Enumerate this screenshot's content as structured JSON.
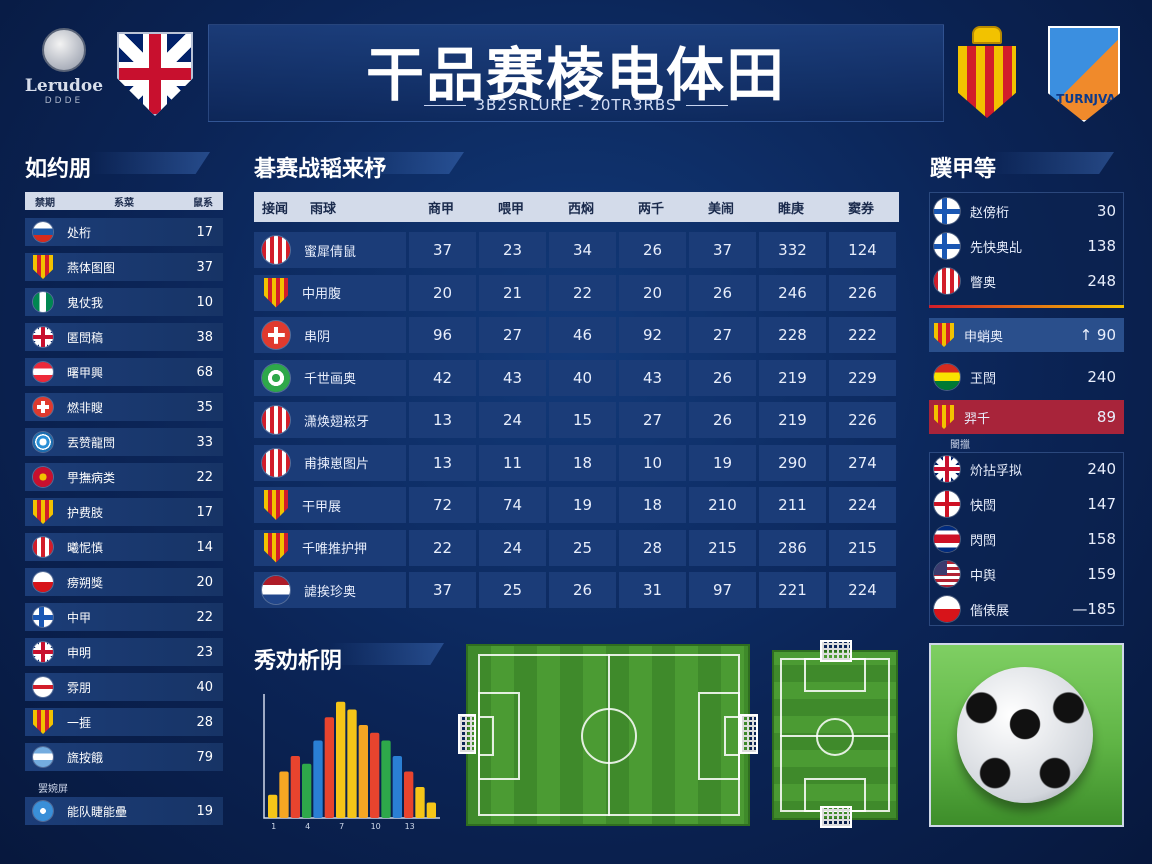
{
  "header": {
    "title": "干品赛棱电体田",
    "subtitle": "3B2SRLURE - 20TR3RBS",
    "left_logo_text": "Lerudoe",
    "left_logo_sub": "DDDE",
    "right_logo_text": "TURNJVA"
  },
  "left_panel": {
    "title": "如约朋",
    "columns": [
      "禁期",
      "系菜",
      "鼠系"
    ],
    "rows": [
      {
        "flag": "russia",
        "name": "处桁",
        "value": "17"
      },
      {
        "flag": "spain-crest",
        "name": "燕体图图",
        "value": "37"
      },
      {
        "flag": "nigeria",
        "name": "鬼仗我",
        "value": "10"
      },
      {
        "flag": "uk",
        "name": "匿閚稿",
        "value": "38"
      },
      {
        "flag": "austria",
        "name": "曙甲興",
        "value": "68"
      },
      {
        "flag": "red-cross",
        "name": "燃非瞍",
        "value": "35"
      },
      {
        "flag": "blue-crest",
        "name": "丟赞龍閚",
        "value": "33"
      },
      {
        "flag": "red-crest",
        "name": "甼撫病类",
        "value": "22"
      },
      {
        "flag": "spain-crest",
        "name": "护费肢",
        "value": "17"
      },
      {
        "flag": "red-white",
        "name": "曦怩慎",
        "value": "14"
      },
      {
        "flag": "czech",
        "name": "痨朔獎",
        "value": "20"
      },
      {
        "flag": "finland",
        "name": "中甲",
        "value": "22"
      },
      {
        "flag": "uk",
        "name": "申明",
        "value": "23"
      },
      {
        "flag": "red-white-2",
        "name": "雰朋",
        "value": "40"
      },
      {
        "flag": "spain-crest",
        "name": "一捱",
        "value": "28"
      },
      {
        "flag": "argentina",
        "name": "旒按餓",
        "value": "79"
      }
    ],
    "footer_label": "罢婉屏",
    "footer_row": {
      "flag": "blue-crest",
      "name": "能队睫能壘",
      "value": "19"
    }
  },
  "main_table": {
    "title": "碁赛战韬来杼",
    "columns": [
      "接闻",
      "雨球",
      "商甲",
      "喂甲",
      "西焖",
      "两千",
      "美闹",
      "睢庚",
      "窦券"
    ],
    "rows": [
      {
        "flag": "red-white",
        "name": "蜜犀倩鼠",
        "values": [
          "37",
          "23",
          "34",
          "26",
          "37",
          "332",
          "124"
        ]
      },
      {
        "flag": "spain-crest",
        "name": "中用腹",
        "values": [
          "20",
          "21",
          "22",
          "20",
          "26",
          "246",
          "226"
        ]
      },
      {
        "flag": "red-cross",
        "name": "串阴",
        "values": [
          "96",
          "27",
          "46",
          "92",
          "27",
          "228",
          "222"
        ]
      },
      {
        "flag": "green-white",
        "name": "千世画奥",
        "values": [
          "42",
          "43",
          "40",
          "43",
          "26",
          "219",
          "229"
        ]
      },
      {
        "flag": "red-white",
        "name": "潇焕翅崧牙",
        "values": [
          "13",
          "24",
          "15",
          "27",
          "26",
          "219",
          "226"
        ]
      },
      {
        "flag": "red-white",
        "name": "甫揀崽图片",
        "values": [
          "13",
          "11",
          "18",
          "10",
          "19",
          "290",
          "274"
        ]
      },
      {
        "flag": "spain-crest",
        "name": "干甲展",
        "values": [
          "72",
          "74",
          "19",
          "18",
          "210",
          "211",
          "224"
        ]
      },
      {
        "flag": "spain-crest",
        "name": "千唯推护押",
        "values": [
          "22",
          "24",
          "25",
          "28",
          "215",
          "286",
          "215"
        ]
      },
      {
        "flag": "netherlands",
        "name": "謔挨珍奥",
        "values": [
          "37",
          "25",
          "26",
          "31",
          "97",
          "221",
          "224"
        ]
      }
    ]
  },
  "right_panel": {
    "title": "蹼甲等",
    "rows": [
      {
        "flag": "finland",
        "name": "赵傍桁",
        "value": "30"
      },
      {
        "flag": "finland",
        "name": "先快奥乩",
        "value": "138"
      },
      {
        "flag": "red-white",
        "name": "瞥奥",
        "value": "248"
      },
      {
        "flag": "spain-crest",
        "name": "申蛸奥",
        "value": "↑ 90"
      },
      {
        "flag": "bolivia",
        "name": "玊閚",
        "value": "240"
      },
      {
        "flag": "spain-crest",
        "name": "羿千",
        "value": "89"
      },
      {
        "flag": "uk",
        "name": "炌拈孚拟",
        "value": "240"
      },
      {
        "flag": "england",
        "name": "快閚",
        "value": "147"
      },
      {
        "flag": "costa-rica",
        "name": "閃閚",
        "value": "158"
      },
      {
        "flag": "usa",
        "name": "中舆",
        "value": "159"
      },
      {
        "flag": "czech",
        "name": "偕俵展",
        "value": "—185"
      }
    ],
    "sub_label": "闛擸"
  },
  "analysis": {
    "title": "秀劝析阴"
  },
  "chart_data": {
    "type": "bar",
    "categories": [
      "1",
      "2",
      "3",
      "4",
      "5",
      "6",
      "7",
      "8",
      "9",
      "10",
      "11",
      "12",
      "13",
      "14",
      "15"
    ],
    "values": [
      3,
      6,
      8,
      7,
      10,
      13,
      15,
      14,
      12,
      11,
      10,
      8,
      6,
      4,
      2
    ],
    "title": "",
    "xlabel": "",
    "ylabel": "",
    "ylim": [
      0,
      16
    ],
    "colors": [
      "#f5c518",
      "#f5a623",
      "#e8442e",
      "#2ea84a",
      "#2a7fd4",
      "#e8442e",
      "#f5c518"
    ]
  },
  "colors": {
    "accent": "#1b3c78",
    "header_bg": "#d3dbea",
    "highlight": "#a8243a",
    "pitch": "#4b9b33"
  }
}
